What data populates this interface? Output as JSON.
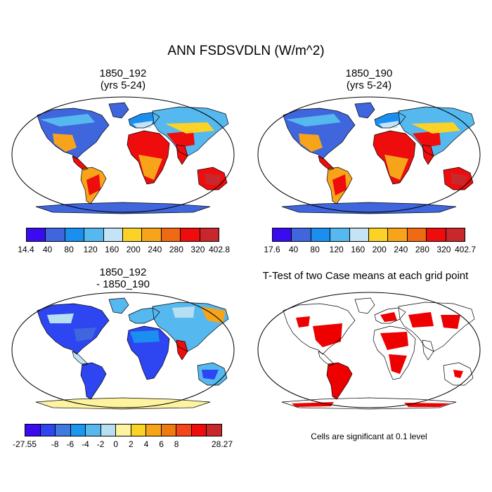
{
  "figure": {
    "title": "ANN FSDSVDLN (W/m^2)"
  },
  "panels": [
    {
      "line1": "1850_192",
      "line2": "(yrs 5-24)"
    },
    {
      "line1": "1850_190",
      "line2": "(yrs 5-24)"
    },
    {
      "line1": "1850_192",
      "line2": "- 1850_190"
    },
    {
      "line1": "T-Test of two Case means at each grid point",
      "line2": ""
    }
  ],
  "colorbars": [
    {
      "colors": [
        "#3b0bf0",
        "#3f66dd",
        "#1a8ff0",
        "#55b8ee",
        "#c4e3f4",
        "#fbd226",
        "#f7a41b",
        "#ef6a12",
        "#ef0c0c",
        "#c8282c"
      ],
      "labels": [
        "14.4",
        "40",
        "80",
        "120",
        "160",
        "200",
        "240",
        "280",
        "320",
        "402.8"
      ]
    },
    {
      "colors": [
        "#3b0bf0",
        "#3f66dd",
        "#1a8ff0",
        "#55b8ee",
        "#c4e3f4",
        "#fbd226",
        "#f7a41b",
        "#ef6a12",
        "#ef0c0c",
        "#c8282c"
      ],
      "labels": [
        "17.6",
        "40",
        "80",
        "120",
        "160",
        "200",
        "240",
        "280",
        "320",
        "402.7"
      ]
    },
    {
      "colors": [
        "#3b0bf0",
        "#2e46f2",
        "#3f7ae0",
        "#1a98f0",
        "#55b8ee",
        "#b6dff2",
        "#fdf3a0",
        "#fbd226",
        "#f7a41b",
        "#f07a12",
        "#f5461a",
        "#ef0c0c",
        "#c8282c"
      ],
      "labels": [
        "-27.55",
        "-8",
        "-6",
        "-4",
        "-2",
        "0",
        "2",
        "4",
        "6",
        "8",
        "28.27"
      ]
    }
  ],
  "ttest_note": "Cells are significant at 0.1 level",
  "map_colors": {
    "hot": "#ef0c0c",
    "warm": "#f7a41b",
    "yellow": "#fbd226",
    "cold": "#3f66dd",
    "blue": "#1a8ff0",
    "light": "#55b8ee",
    "pale": "#c4e3f4",
    "darkred": "#c8282c",
    "diffblue": "#2e46f2",
    "diffpale": "#b6dff2",
    "diffyellow": "#fdf3a0",
    "sig": "#ee0000"
  }
}
